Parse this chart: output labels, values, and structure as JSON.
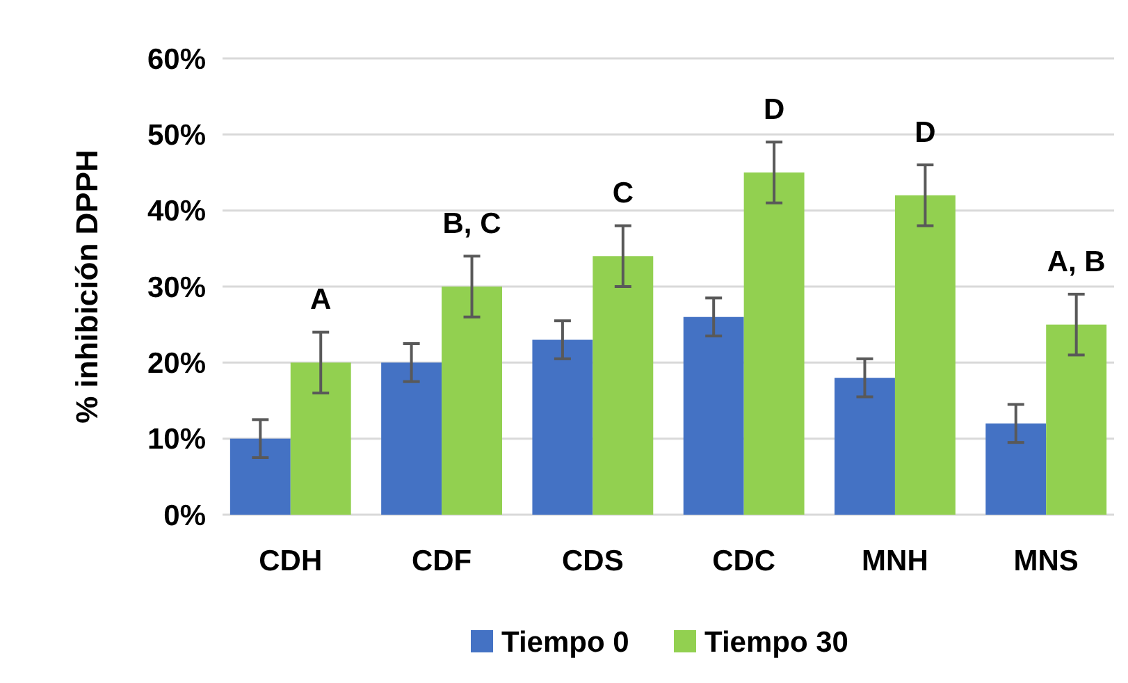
{
  "chart_data": {
    "type": "bar",
    "ylabel": "% inhibición DPPH",
    "categories": [
      "CDH",
      "CDF",
      "CDS",
      "CDC",
      "MNH",
      "MNS"
    ],
    "series": [
      {
        "name": "Tiempo 0",
        "color": "#4472c4",
        "values": [
          10,
          20,
          23,
          26,
          18,
          12
        ],
        "errors": [
          2.5,
          2.5,
          2.5,
          2.5,
          2.5,
          2.5
        ]
      },
      {
        "name": "Tiempo 30",
        "color": "#92d050",
        "values": [
          20,
          30,
          34,
          45,
          42,
          25
        ],
        "errors": [
          4,
          4,
          4,
          4,
          4,
          4
        ]
      }
    ],
    "ylim": [
      0,
      60
    ],
    "yticks": [
      {
        "value": 0,
        "label": "0%"
      },
      {
        "value": 10,
        "label": "10%"
      },
      {
        "value": 20,
        "label": "20%"
      },
      {
        "value": 30,
        "label": "30%"
      },
      {
        "value": 40,
        "label": "40%"
      },
      {
        "value": 50,
        "label": "50%"
      },
      {
        "value": 60,
        "label": "60%"
      }
    ],
    "grid": "y",
    "legend": "bottom",
    "annotations": [
      {
        "text": "A",
        "x": "CDH",
        "y": 20
      },
      {
        "text": "B, C",
        "x": "CDF",
        "y": 30
      },
      {
        "text": "C",
        "x": "CDS",
        "y": 34
      },
      {
        "text": "D",
        "x": "CDC",
        "y": 45
      },
      {
        "text": "D",
        "x": "MNH",
        "y": 42
      },
      {
        "text": "A, B",
        "x": "MNS",
        "y": 25
      }
    ]
  }
}
